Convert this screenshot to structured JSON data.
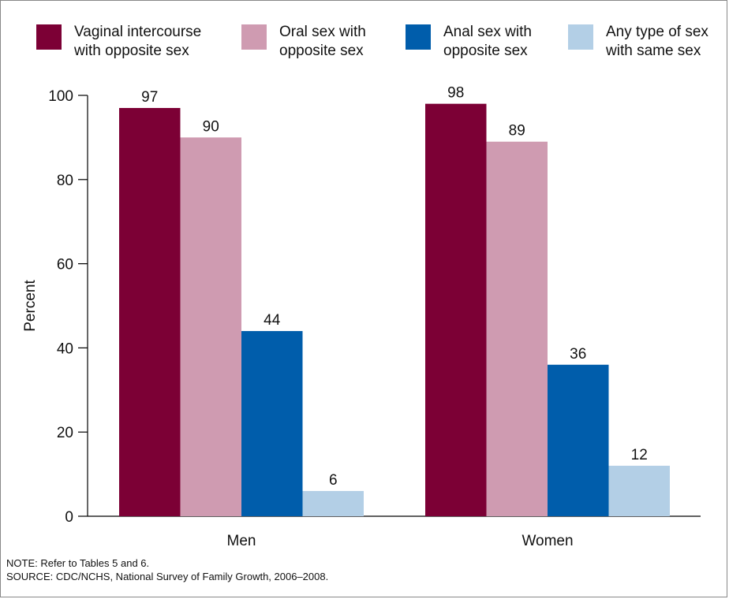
{
  "chart_data": {
    "type": "bar",
    "categories": [
      "Men",
      "Women"
    ],
    "series": [
      {
        "name": "Vaginal intercourse with opposite sex",
        "name_lines": [
          "Vaginal intercourse",
          "with opposite sex"
        ],
        "values": [
          97,
          98
        ],
        "color": "#7c0035"
      },
      {
        "name": "Oral sex with opposite sex",
        "name_lines": [
          "Oral sex with",
          "opposite sex"
        ],
        "values": [
          90,
          89
        ],
        "color": "#cf9bb1"
      },
      {
        "name": "Anal sex with opposite sex",
        "name_lines": [
          "Anal sex with",
          "opposite sex"
        ],
        "values": [
          44,
          36
        ],
        "color": "#005dab"
      },
      {
        "name": "Any type of sex with same sex",
        "name_lines": [
          "Any type of sex",
          "with same sex"
        ],
        "values": [
          6,
          12
        ],
        "color": "#b3cfe6"
      }
    ],
    "ylabel": "Percent",
    "xlabel": "",
    "ylim": [
      0,
      100
    ],
    "yticks": [
      0,
      20,
      40,
      60,
      80,
      100
    ],
    "grid": false,
    "legend_position": "top"
  },
  "notes": {
    "note": "NOTE: Refer to Tables 5 and 6.",
    "source": "SOURCE: CDC/NCHS, National Survey of Family Growth, 2006–2008."
  }
}
